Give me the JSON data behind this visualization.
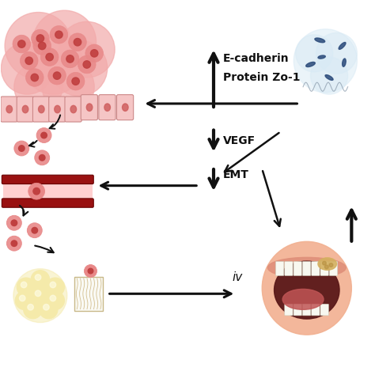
{
  "background_color": "#ffffff",
  "labels": {
    "E_cadherin": "E-cadherin",
    "Protein_Zo1": "Protein Zo-1",
    "VEGF": "VEGF",
    "EMT": "EMT",
    "iv": "iv"
  },
  "arrow_color": "#111111",
  "text_color": "#111111",
  "label_fontsize": 10,
  "label_fontweight": "bold",
  "figsize": [
    4.74,
    4.74
  ],
  "dpi": 100,
  "tumor_blob_color": "#f2aaaa",
  "tumor_cell_color": "#e88888",
  "tumor_nucleus_color": "#c04040",
  "epithelial_fill": "#f5c5c5",
  "epithelial_edge": "#cc8888",
  "fat_fill": "#f5eaaa",
  "fat_edge": "#d4c060",
  "vessel_dark": "#991111",
  "vessel_light": "#ffd0d0",
  "bacteria_bg": "#d8eaf5",
  "bacteria_color": "#2a4a7a",
  "mouth_skin": "#f2b090",
  "mouth_dark": "#5a1818",
  "mouth_tongue": "#c05555",
  "mouth_teeth": "#f8f8f0",
  "tumor_lesion": "#d4b060"
}
